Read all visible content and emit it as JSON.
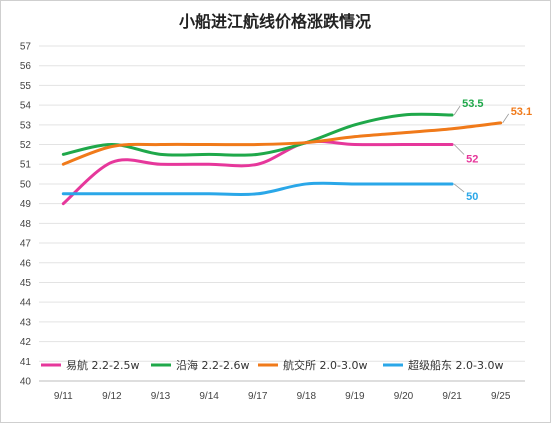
{
  "chart_data": {
    "type": "line",
    "title": "小船进江航线价格涨跌情况",
    "categories": [
      "9/11",
      "9/12",
      "9/13",
      "9/14",
      "9/17",
      "9/18",
      "9/19",
      "9/20",
      "9/21",
      "9/25"
    ],
    "y_ticks": [
      "40",
      "41",
      "42",
      "43",
      "44",
      "45",
      "46",
      "47",
      "48",
      "49",
      "50",
      "51",
      "52",
      "53",
      "54",
      "55",
      "56",
      "57"
    ],
    "ylim": [
      40,
      57
    ],
    "grid": "horizontal",
    "legend": "bottom",
    "series": [
      {
        "name": "易航 2.2-2.5w",
        "color": "#e6379b",
        "values": [
          49,
          51.1,
          51,
          51,
          51,
          52.1,
          52,
          52,
          52,
          null
        ],
        "end_label": "52"
      },
      {
        "name": "沿海 2.2-2.6w",
        "color": "#1fa84a",
        "values": [
          51.5,
          52,
          51.5,
          51.5,
          51.5,
          52.1,
          53,
          53.5,
          53.5,
          null
        ],
        "end_label": "53.5"
      },
      {
        "name": "航交所 2.0-3.0w",
        "color": "#f07a1a",
        "values": [
          51,
          51.9,
          52,
          52,
          52,
          52.1,
          52.4,
          52.6,
          52.8,
          53.1
        ],
        "end_label": "53.1"
      },
      {
        "name": "超级船东 2.0-3.0w",
        "color": "#2aa7e8",
        "values": [
          49.5,
          49.5,
          49.5,
          49.5,
          49.5,
          50,
          50,
          50,
          50,
          null
        ],
        "end_label": "50"
      }
    ]
  }
}
